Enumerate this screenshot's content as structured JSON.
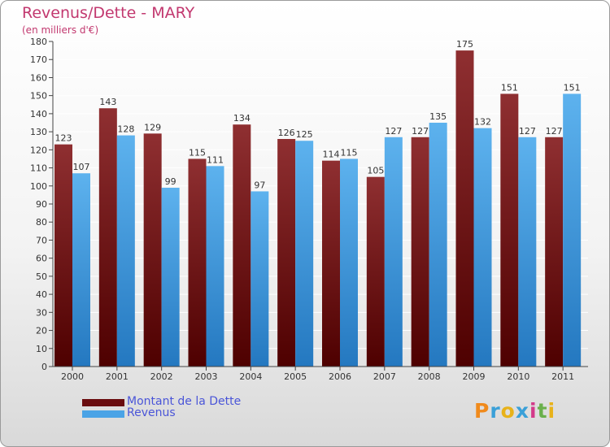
{
  "title": "Revenus/Dette - MARY",
  "subtitle": "(en milliers d'€)",
  "legend": [
    {
      "label": "Montant de la Dette",
      "color": "#7a1c1e"
    },
    {
      "label": "Revenus",
      "color": "#4aa3e6"
    }
  ],
  "logo": {
    "letters": [
      "P",
      "r",
      "o",
      "x",
      "i",
      "t",
      "i"
    ],
    "colors": [
      "#f08a1c",
      "#3aa0d8",
      "#e8b21a",
      "#3aa0d8",
      "#d33a8a",
      "#6ab04c",
      "#e8b21a"
    ]
  },
  "chart_data": {
    "type": "bar",
    "categories": [
      "2000",
      "2001",
      "2002",
      "2003",
      "2004",
      "2005",
      "2006",
      "2007",
      "2008",
      "2009",
      "2010",
      "2011"
    ],
    "series": [
      {
        "name": "Montant de la Dette",
        "values": [
          123,
          143,
          129,
          115,
          134,
          126,
          114,
          105,
          127,
          175,
          151,
          127
        ],
        "color": "#7a1c1e"
      },
      {
        "name": "Revenus",
        "values": [
          107,
          128,
          99,
          111,
          97,
          125,
          115,
          127,
          135,
          132,
          127,
          151
        ],
        "color": "#4aa3e6"
      }
    ],
    "ylim": [
      0,
      180
    ],
    "yticks": [
      0,
      10,
      20,
      30,
      40,
      50,
      60,
      70,
      80,
      90,
      100,
      110,
      120,
      130,
      140,
      150,
      160,
      170,
      180
    ],
    "grid": true,
    "legend_position": "bottom-left"
  }
}
